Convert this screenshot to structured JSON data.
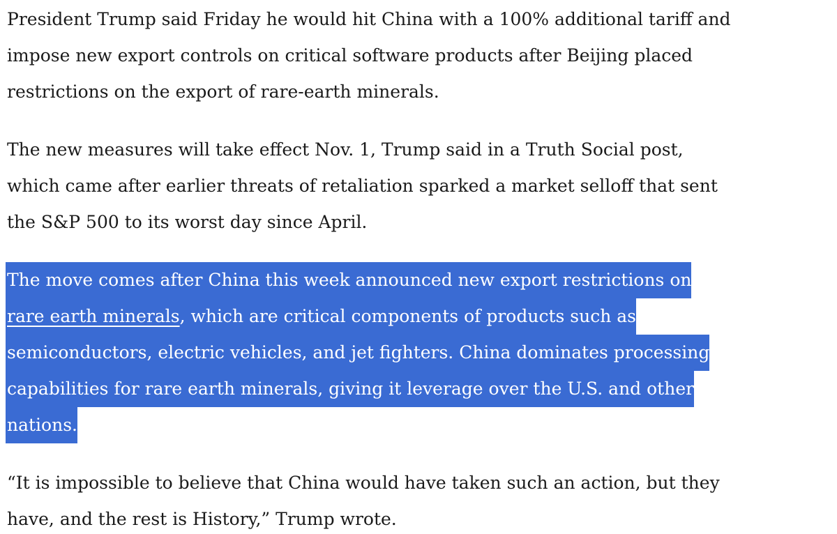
{
  "paragraphs": [
    {
      "lines": [
        "President Trump said Friday he would hit China with a 100% additional tariff and",
        "impose new export controls on critical software products after Beijing placed",
        "restrictions on the export of rare-earth minerals."
      ]
    },
    {
      "lines": [
        "The new measures will take effect Nov. 1, Trump said in a Truth Social post,",
        "which came after earlier threats of retaliation sparked a market selloff that sent",
        "the S&P 500 to its worst day since April."
      ]
    },
    {
      "lines": [
        "The move comes after China this week announced new export restrictions on",
        "semiconductors, electric vehicles, and jet fighters. China dominates processing",
        "capabilities for rare earth minerals, giving it leverage over the U.S. and other",
        "nations."
      ],
      "link": "rare earth minerals",
      "link_line_rest": ", which are critical components of products such as"
    },
    {
      "lines": [
        "“It is impossible to believe that China would have taken such an action, but they",
        "have, and the rest is History,” Trump wrote."
      ]
    }
  ]
}
